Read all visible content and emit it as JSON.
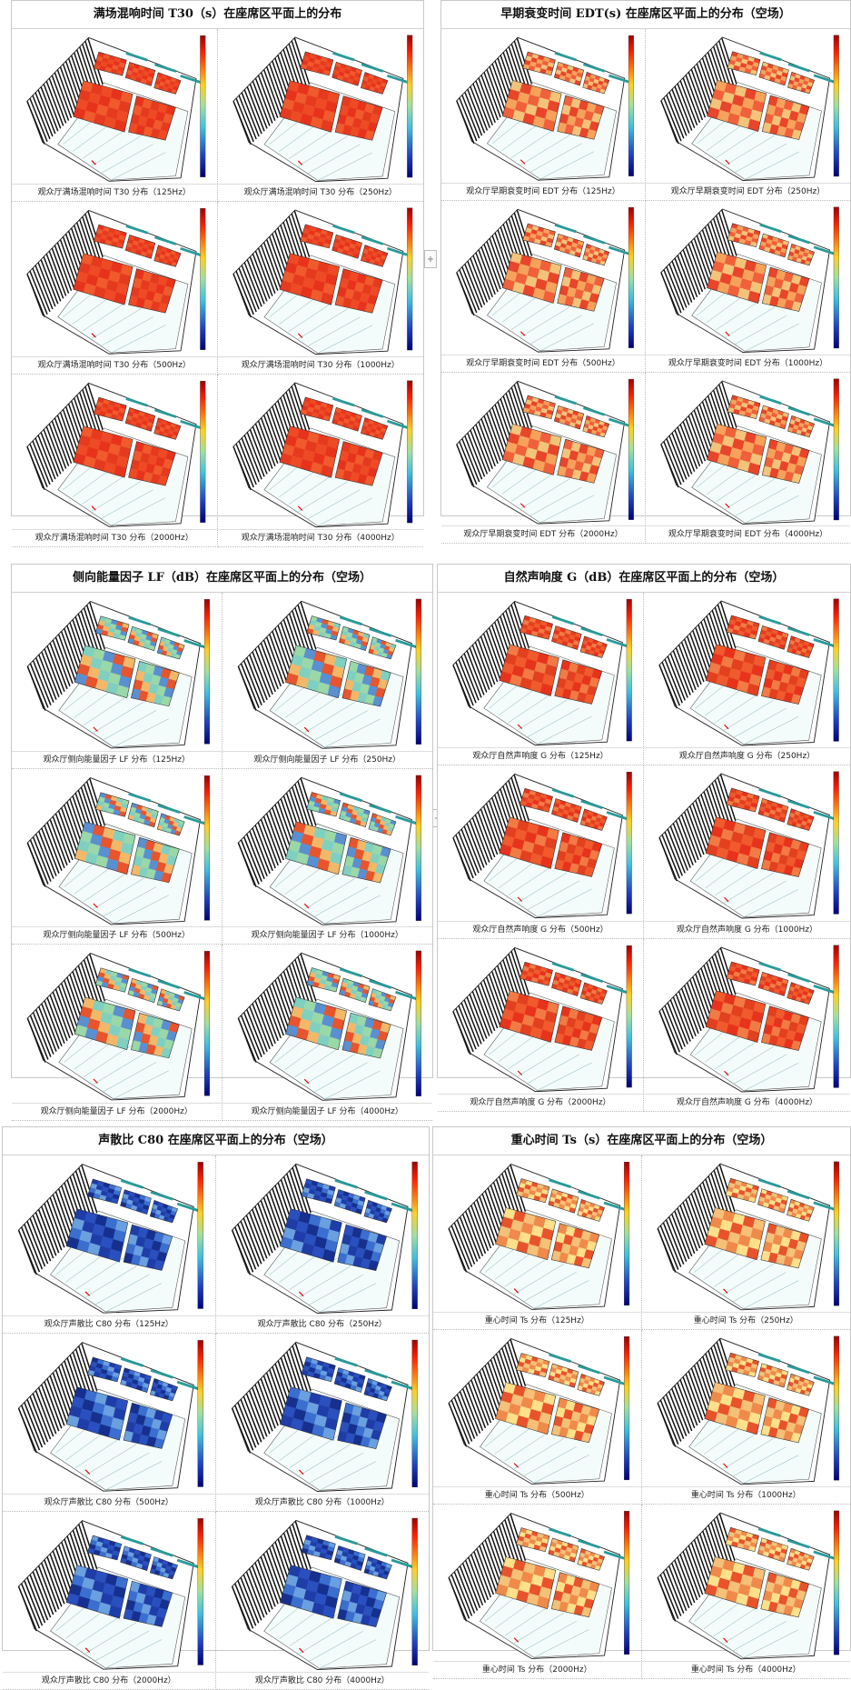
{
  "panels": [
    {
      "title": "满场混响时间 T30（s）在座席区平面上的分布",
      "figures": [
        {
          "caption": "观众厅满场混响时间 T30 分布（125Hz）"
        },
        {
          "caption": "观众厅满场混响时间 T30 分布（250Hz）"
        },
        {
          "caption": "观众厅满场混响时间 T30 分布（500Hz）"
        },
        {
          "caption": "观众厅满场混响时间 T30 分布（1000Hz）"
        },
        {
          "caption": "观众厅满场混响时间 T30 分布（2000Hz）"
        },
        {
          "caption": "观众厅满场混响时间 T30 分布（4000Hz）"
        }
      ]
    },
    {
      "title": "早期衰变时间 EDT(s) 在座席区平面上的分布（空场）",
      "figures": [
        {
          "caption": "观众厅早期衰变时间 EDT 分布（125Hz）"
        },
        {
          "caption": "观众厅早期衰变时间 EDT 分布（250Hz）"
        },
        {
          "caption": "观众厅早期衰变时间 EDT 分布（500Hz）"
        },
        {
          "caption": "观众厅早期衰变时间 EDT 分布（1000Hz）"
        },
        {
          "caption": "观众厅早期衰变时间 EDT 分布（2000Hz）"
        },
        {
          "caption": "观众厅早期衰变时间 EDT 分布（4000Hz）"
        }
      ]
    },
    {
      "title": "侧向能量因子 LF（dB）在座席区平面上的分布（空场）",
      "figures": [
        {
          "caption": "观众厅侧向能量因子 LF 分布（125Hz）"
        },
        {
          "caption": "观众厅侧向能量因子 LF 分布（250Hz）"
        },
        {
          "caption": "观众厅侧向能量因子 LF 分布（500Hz）"
        },
        {
          "caption": "观众厅侧向能量因子 LF 分布（1000Hz）"
        },
        {
          "caption": "观众厅侧向能量因子 LF 分布（2000Hz）"
        },
        {
          "caption": "观众厅侧向能量因子 LF 分布（4000Hz）"
        }
      ]
    },
    {
      "title": "自然声响度 G（dB）在座席区平面上的分布（空场）",
      "figures": [
        {
          "caption": "观众厅自然声响度 G 分布（125Hz）"
        },
        {
          "caption": "观众厅自然声响度 G 分布（250Hz）"
        },
        {
          "caption": "观众厅自然声响度 G 分布（500Hz）"
        },
        {
          "caption": "观众厅自然声响度 G 分布（1000Hz）"
        },
        {
          "caption": "观众厅自然声响度 G 分布（2000Hz）"
        },
        {
          "caption": "观众厅自然声响度 G 分布（4000Hz）"
        }
      ]
    },
    {
      "title": "声散比 C80 在座席区平面上的分布（空场）",
      "figures": [
        {
          "caption": "观众厅声散比 C80 分布（125Hz）"
        },
        {
          "caption": "观众厅声散比 C80 分布（250Hz）"
        },
        {
          "caption": "观众厅声散比 C80 分布（500Hz）"
        },
        {
          "caption": "观众厅声散比 C80 分布（1000Hz）"
        },
        {
          "caption": "观众厅声散比 C80 分布（2000Hz）"
        },
        {
          "caption": "观众厅声散比 C80 分布（4000Hz）"
        }
      ]
    },
    {
      "title": "重心时间 Ts（s）在座席区平面上的分布（空场）",
      "figures": [
        {
          "caption": "重心时间 Ts 分布（125Hz）"
        },
        {
          "caption": "重心时间 Ts 分布（250Hz）"
        },
        {
          "caption": "重心时间 Ts 分布（500Hz）"
        },
        {
          "caption": "重心时间 Ts 分布（1000Hz）"
        },
        {
          "caption": "重心时间 Ts 分布（2000Hz）"
        },
        {
          "caption": "重心时间 Ts 分布（4000Hz）"
        }
      ]
    }
  ]
}
